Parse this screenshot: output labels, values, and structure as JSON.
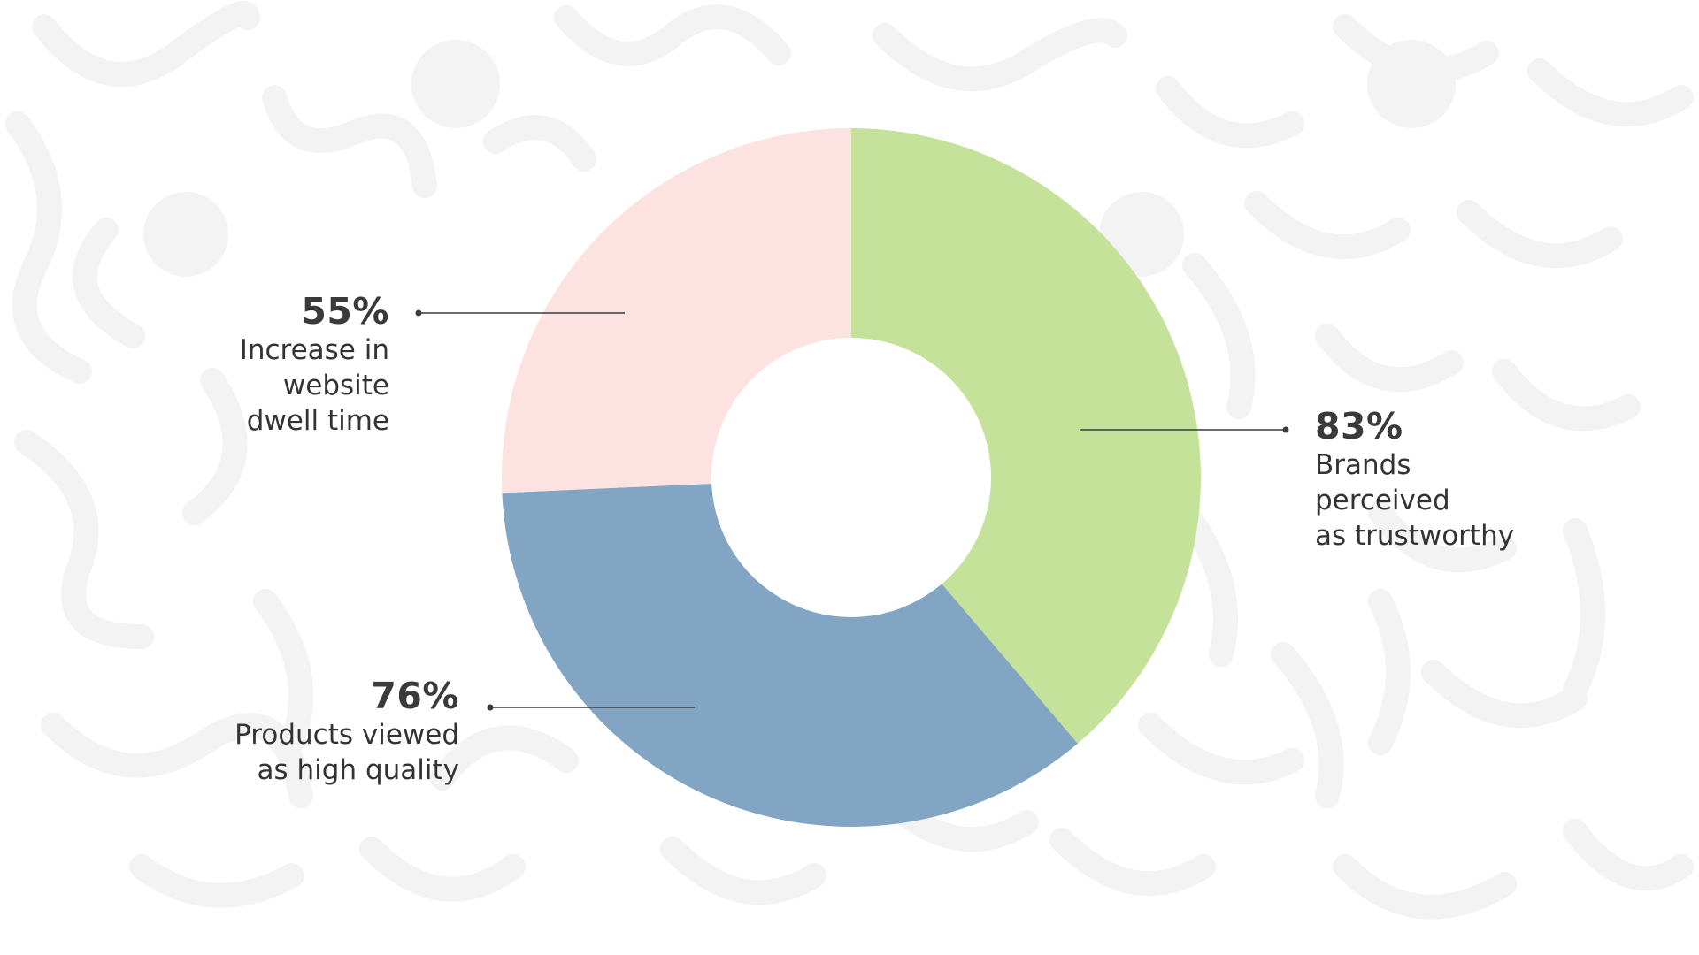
{
  "chart_data": {
    "type": "pie",
    "style": "donut",
    "slices": [
      {
        "label": "83%",
        "value": 83,
        "description": [
          "Brands",
          "perceived",
          "as trustworthy"
        ],
        "color": "#c4e29a"
      },
      {
        "label": "76%",
        "value": 76,
        "description": [
          "Products viewed",
          "as high quality"
        ],
        "color": "#81a5c2"
      },
      {
        "label": "55%",
        "value": 55,
        "description": [
          "Increase in",
          "website",
          "dwell time"
        ],
        "color": "#fde2e2"
      }
    ]
  },
  "colors": {
    "background": "#ffffff",
    "pattern": "#f2f2f3",
    "text": "#3a3a3a",
    "leader_line": "#3a3a3a"
  }
}
